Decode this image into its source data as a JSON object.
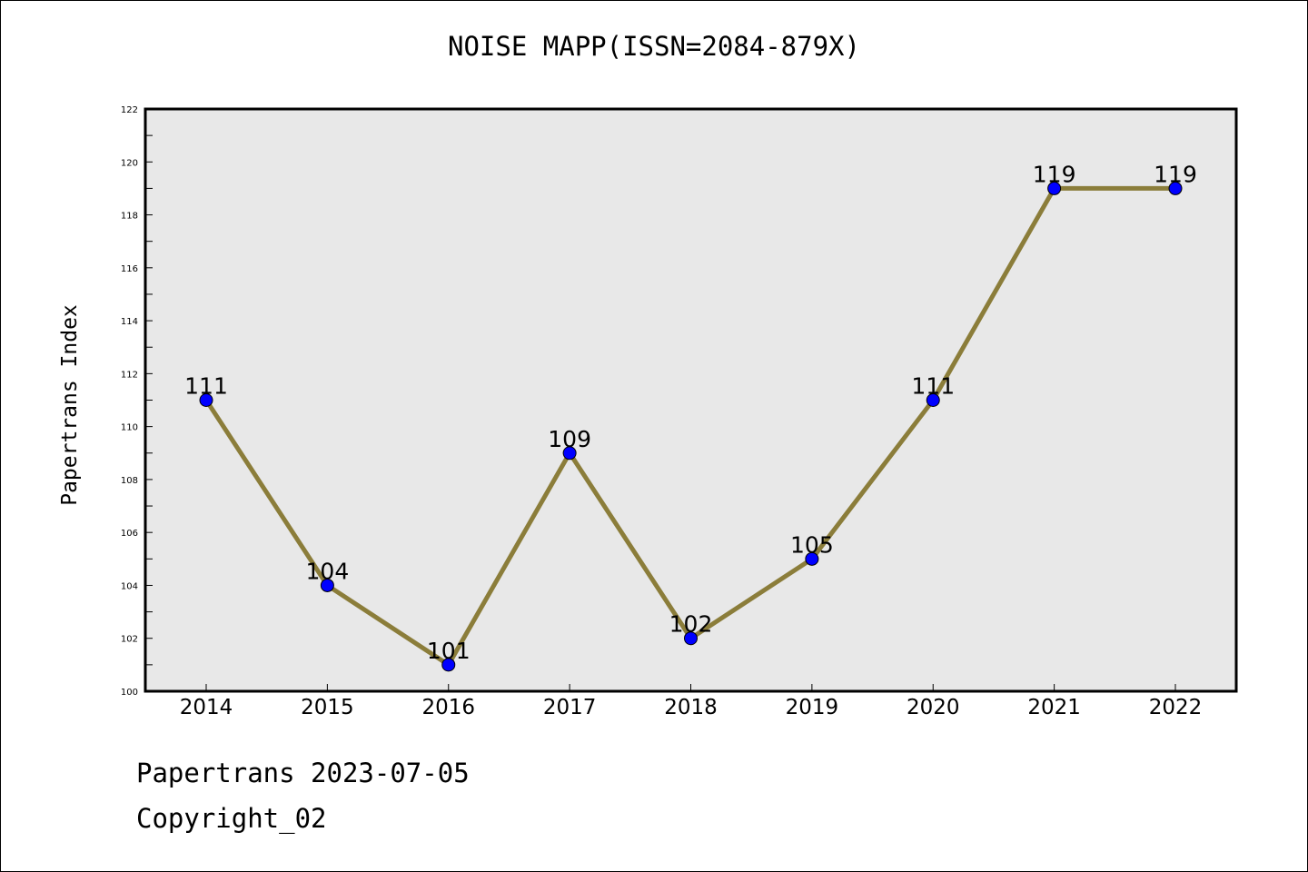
{
  "chart_data": {
    "type": "line",
    "title": "NOISE MAPP(ISSN=2084-879X)",
    "xlabel": "",
    "ylabel": "Papertrans Index",
    "categories": [
      "2014",
      "2015",
      "2016",
      "2017",
      "2018",
      "2019",
      "2020",
      "2021",
      "2022"
    ],
    "series": [
      {
        "values": [
          111,
          104,
          101,
          109,
          102,
          105,
          111,
          119,
          119
        ]
      }
    ],
    "ylim": [
      100,
      122
    ],
    "yticks": [
      "100",
      "102",
      "104",
      "106",
      "108",
      "110",
      "112",
      "114",
      "116",
      "118",
      "120",
      "122"
    ],
    "grid": false,
    "data_labels": true,
    "colors": {
      "line": "#8b7d3a",
      "marker": "#0000ff",
      "plot_background": "#e8e8e8"
    }
  },
  "footer": {
    "date_line": "Papertrans 2023-07-05",
    "copyright": "Copyright_02"
  }
}
